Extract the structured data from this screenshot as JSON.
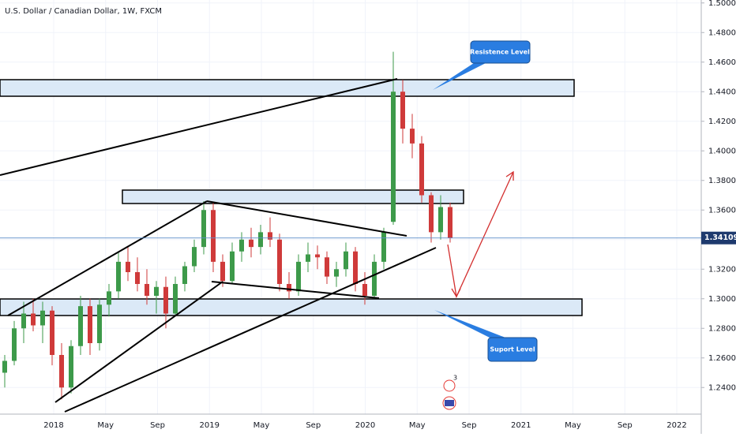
{
  "chart_data": {
    "type": "candlestick",
    "title": "U.S. Dollar / Canadian Dollar, 1W, FXCM",
    "x_labels": [
      "2018",
      "May",
      "Sep",
      "2019",
      "May",
      "Sep",
      "2020",
      "May",
      "Sep",
      "2021",
      "May",
      "Sep",
      "2022"
    ],
    "up_color": "#3d9a4a",
    "down_color": "#cf3a3a",
    "ylim": [
      1.222,
      1.502
    ],
    "yticks": [
      {
        "value": 1.24,
        "label": "1.24000"
      },
      {
        "value": 1.26,
        "label": "1.26000"
      },
      {
        "value": 1.28,
        "label": "1.28000"
      },
      {
        "value": 1.3,
        "label": "1.30000"
      },
      {
        "value": 1.32,
        "label": "1.32000"
      },
      {
        "value": 1.34,
        "label": "1.34000"
      },
      {
        "value": 1.36,
        "label": "1.36000"
      },
      {
        "value": 1.38,
        "label": "1.38000"
      },
      {
        "value": 1.4,
        "label": "1.40000"
      },
      {
        "value": 1.42,
        "label": "1.42000"
      },
      {
        "value": 1.44,
        "label": "1.44000"
      },
      {
        "value": 1.46,
        "label": "1.46000"
      },
      {
        "value": 1.48,
        "label": "1.48000"
      },
      {
        "value": 1.5,
        "label": "1.50000"
      }
    ],
    "last_price": 1.34109,
    "grid": true,
    "candles": [
      [
        1.25,
        1.262,
        1.24,
        1.258
      ],
      [
        1.258,
        1.285,
        1.255,
        1.28
      ],
      [
        1.28,
        1.298,
        1.27,
        1.29
      ],
      [
        1.29,
        1.3,
        1.278,
        1.282
      ],
      [
        1.282,
        1.298,
        1.27,
        1.292
      ],
      [
        1.292,
        1.295,
        1.255,
        1.262
      ],
      [
        1.262,
        1.27,
        1.232,
        1.24
      ],
      [
        1.24,
        1.272,
        1.236,
        1.268
      ],
      [
        1.268,
        1.302,
        1.262,
        1.295
      ],
      [
        1.295,
        1.3,
        1.262,
        1.27
      ],
      [
        1.27,
        1.3,
        1.265,
        1.296
      ],
      [
        1.296,
        1.31,
        1.288,
        1.305
      ],
      [
        1.305,
        1.332,
        1.3,
        1.325
      ],
      [
        1.325,
        1.335,
        1.312,
        1.318
      ],
      [
        1.318,
        1.328,
        1.305,
        1.31
      ],
      [
        1.31,
        1.32,
        1.296,
        1.302
      ],
      [
        1.302,
        1.312,
        1.29,
        1.308
      ],
      [
        1.308,
        1.315,
        1.28,
        1.29
      ],
      [
        1.29,
        1.315,
        1.288,
        1.31
      ],
      [
        1.31,
        1.325,
        1.305,
        1.322
      ],
      [
        1.322,
        1.34,
        1.318,
        1.335
      ],
      [
        1.335,
        1.366,
        1.33,
        1.36
      ],
      [
        1.36,
        1.365,
        1.318,
        1.325
      ],
      [
        1.325,
        1.33,
        1.308,
        1.312
      ],
      [
        1.312,
        1.338,
        1.31,
        1.332
      ],
      [
        1.332,
        1.345,
        1.325,
        1.34
      ],
      [
        1.34,
        1.348,
        1.328,
        1.335
      ],
      [
        1.335,
        1.35,
        1.33,
        1.345
      ],
      [
        1.345,
        1.355,
        1.335,
        1.34
      ],
      [
        1.34,
        1.344,
        1.305,
        1.31
      ],
      [
        1.31,
        1.318,
        1.3,
        1.305
      ],
      [
        1.305,
        1.33,
        1.302,
        1.325
      ],
      [
        1.325,
        1.338,
        1.318,
        1.33
      ],
      [
        1.33,
        1.336,
        1.32,
        1.328
      ],
      [
        1.328,
        1.332,
        1.31,
        1.315
      ],
      [
        1.315,
        1.325,
        1.308,
        1.32
      ],
      [
        1.32,
        1.338,
        1.315,
        1.332
      ],
      [
        1.332,
        1.335,
        1.305,
        1.31
      ],
      [
        1.31,
        1.318,
        1.296,
        1.302
      ],
      [
        1.302,
        1.33,
        1.3,
        1.325
      ],
      [
        1.325,
        1.348,
        1.32,
        1.345
      ],
      [
        1.352,
        1.467,
        1.35,
        1.44
      ],
      [
        1.44,
        1.448,
        1.405,
        1.415
      ],
      [
        1.415,
        1.425,
        1.395,
        1.405
      ],
      [
        1.405,
        1.41,
        1.365,
        1.37
      ],
      [
        1.37,
        1.372,
        1.338,
        1.345
      ],
      [
        1.345,
        1.37,
        1.34,
        1.362
      ],
      [
        1.362,
        1.365,
        1.338,
        1.341
      ]
    ],
    "annotations": [
      "Resistence Level",
      "Suport Level"
    ],
    "event_badge": "3"
  }
}
